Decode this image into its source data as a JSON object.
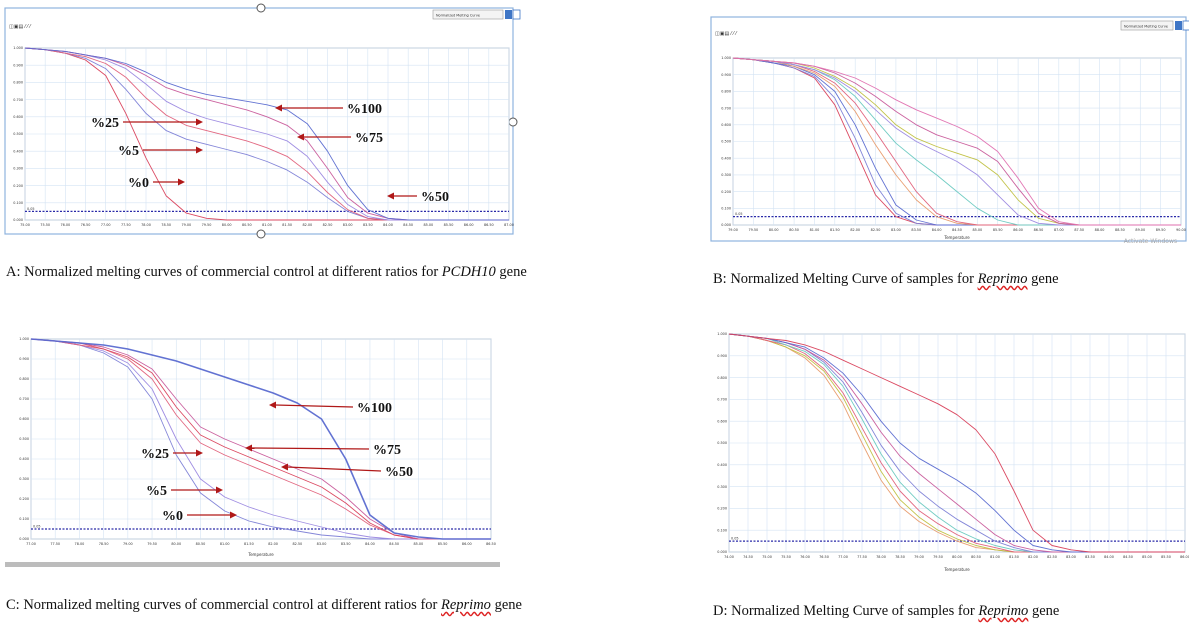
{
  "panels": [
    {
      "id": "A",
      "caption_prefix": "A: Normalized melting curves of commercial control at different ratios for ",
      "caption_gene": "PCDH10",
      "caption_suffix": " gene",
      "chart_data": {
        "type": "line",
        "x_ticks": [
          "75.00",
          "75.50",
          "76.00",
          "76.50",
          "77.00",
          "77.50",
          "78.00",
          "78.50",
          "79.00",
          "79.50",
          "80.00",
          "80.50",
          "81.00",
          "81.50",
          "82.00",
          "82.50",
          "83.00",
          "83.50",
          "84.00",
          "84.50",
          "85.00",
          "85.50",
          "86.00",
          "86.50",
          "87.00"
        ],
        "y_ticks": [
          "0.000",
          "0.100",
          "0.200",
          "0.300",
          "0.400",
          "0.500",
          "0.600",
          "0.700",
          "0.800",
          "0.900",
          "1.000"
        ],
        "threshold_label": "0.05",
        "dropdown_label": "Normalized Melting Curve",
        "annotations": [
          "%100",
          "%25",
          "%75",
          "%5",
          "%0",
          "%50"
        ],
        "series": [
          {
            "values": [
              1,
              0.99,
              0.97,
              0.93,
              0.84,
              0.62,
              0.36,
              0.14,
              0.04,
              0.01,
              0,
              0,
              0,
              0,
              0,
              0,
              0,
              0,
              0,
              0,
              0,
              0,
              0,
              0,
              0
            ]
          },
          {
            "values": [
              1,
              0.99,
              0.97,
              0.94,
              0.88,
              0.76,
              0.62,
              0.52,
              0.47,
              0.44,
              0.41,
              0.38,
              0.34,
              0.29,
              0.22,
              0.13,
              0.05,
              0.01,
              0,
              0,
              0,
              0,
              0,
              0,
              0
            ]
          },
          {
            "values": [
              1,
              0.99,
              0.97,
              0.95,
              0.91,
              0.83,
              0.71,
              0.61,
              0.55,
              0.52,
              0.49,
              0.46,
              0.42,
              0.37,
              0.28,
              0.16,
              0.06,
              0.01,
              0,
              0,
              0,
              0,
              0,
              0,
              0
            ]
          },
          {
            "values": [
              1,
              0.99,
              0.98,
              0.96,
              0.93,
              0.88,
              0.79,
              0.69,
              0.63,
              0.59,
              0.56,
              0.53,
              0.5,
              0.46,
              0.37,
              0.22,
              0.09,
              0.02,
              0,
              0,
              0,
              0,
              0,
              0,
              0
            ]
          },
          {
            "values": [
              1,
              0.99,
              0.98,
              0.96,
              0.94,
              0.9,
              0.84,
              0.77,
              0.73,
              0.7,
              0.67,
              0.64,
              0.6,
              0.55,
              0.46,
              0.3,
              0.13,
              0.04,
              0.01,
              0,
              0,
              0,
              0,
              0,
              0
            ]
          },
          {
            "values": [
              1,
              0.99,
              0.98,
              0.96,
              0.94,
              0.91,
              0.86,
              0.8,
              0.76,
              0.73,
              0.71,
              0.69,
              0.67,
              0.64,
              0.56,
              0.4,
              0.2,
              0.06,
              0.01,
              0,
              0,
              0,
              0,
              0,
              0
            ]
          }
        ]
      }
    },
    {
      "id": "B",
      "caption_prefix": "B:  Normalized Melting Curve of samples for ",
      "caption_gene": "Reprimo",
      "caption_suffix": " gene",
      "chart_data": {
        "type": "line",
        "x_ticks": [
          "79.00",
          "79.50",
          "80.00",
          "80.50",
          "81.00",
          "81.50",
          "82.00",
          "82.50",
          "83.00",
          "83.50",
          "84.00",
          "84.50",
          "85.00",
          "85.50",
          "86.00",
          "86.50",
          "87.00",
          "87.50",
          "88.00",
          "88.50",
          "89.00",
          "89.50",
          "90.00"
        ],
        "y_ticks": [
          "0.000",
          "0.100",
          "0.200",
          "0.300",
          "0.400",
          "0.500",
          "0.600",
          "0.700",
          "0.800",
          "0.900",
          "1.000"
        ],
        "xlabel": "Temperature",
        "threshold_label": "0.05",
        "dropdown_label": "Normalized Melting Curve",
        "watermark": "Activate Windows",
        "series": [
          {
            "values": [
              1,
              0.99,
              0.97,
              0.94,
              0.88,
              0.72,
              0.45,
              0.18,
              0.05,
              0.01,
              0,
              0,
              0,
              0,
              0,
              0,
              0,
              0,
              0,
              0,
              0,
              0,
              0
            ]
          },
          {
            "values": [
              1,
              0.99,
              0.97,
              0.94,
              0.89,
              0.76,
              0.52,
              0.24,
              0.07,
              0.01,
              0,
              0,
              0,
              0,
              0,
              0,
              0,
              0,
              0,
              0,
              0,
              0,
              0
            ]
          },
          {
            "values": [
              1,
              0.99,
              0.97,
              0.95,
              0.9,
              0.8,
              0.6,
              0.34,
              0.12,
              0.03,
              0,
              0,
              0,
              0,
              0,
              0,
              0,
              0,
              0,
              0,
              0,
              0,
              0
            ]
          },
          {
            "values": [
              1,
              0.99,
              0.98,
              0.95,
              0.91,
              0.83,
              0.68,
              0.48,
              0.3,
              0.15,
              0.05,
              0.01,
              0,
              0,
              0,
              0,
              0,
              0,
              0,
              0,
              0,
              0,
              0
            ]
          },
          {
            "values": [
              1,
              0.99,
              0.98,
              0.96,
              0.92,
              0.85,
              0.73,
              0.56,
              0.38,
              0.2,
              0.07,
              0.02,
              0,
              0,
              0,
              0,
              0,
              0,
              0,
              0,
              0,
              0,
              0
            ]
          },
          {
            "values": [
              1,
              0.99,
              0.98,
              0.96,
              0.93,
              0.87,
              0.77,
              0.63,
              0.49,
              0.39,
              0.3,
              0.2,
              0.1,
              0.03,
              0,
              0,
              0,
              0,
              0,
              0,
              0,
              0,
              0
            ]
          },
          {
            "values": [
              1,
              0.99,
              0.98,
              0.96,
              0.93,
              0.88,
              0.8,
              0.69,
              0.58,
              0.5,
              0.44,
              0.38,
              0.3,
              0.18,
              0.06,
              0.01,
              0,
              0,
              0,
              0,
              0,
              0,
              0
            ]
          },
          {
            "values": [
              1,
              0.99,
              0.98,
              0.97,
              0.94,
              0.89,
              0.82,
              0.72,
              0.6,
              0.52,
              0.47,
              0.43,
              0.39,
              0.3,
              0.15,
              0.04,
              0.01,
              0,
              0,
              0,
              0,
              0,
              0
            ]
          },
          {
            "values": [
              1,
              0.99,
              0.98,
              0.97,
              0.95,
              0.91,
              0.85,
              0.77,
              0.68,
              0.6,
              0.54,
              0.5,
              0.46,
              0.38,
              0.22,
              0.07,
              0.01,
              0,
              0,
              0,
              0,
              0,
              0
            ]
          },
          {
            "values": [
              1,
              0.99,
              0.98,
              0.97,
              0.95,
              0.92,
              0.88,
              0.82,
              0.75,
              0.69,
              0.64,
              0.59,
              0.53,
              0.44,
              0.28,
              0.1,
              0.02,
              0,
              0,
              0,
              0,
              0,
              0
            ]
          }
        ]
      }
    },
    {
      "id": "C",
      "caption_prefix": "C: Normalized melting curves of commercial control at different ratios for ",
      "caption_gene": "Reprimo",
      "caption_suffix": " gene",
      "chart_data": {
        "type": "line",
        "x_ticks": [
          "77.00",
          "77.50",
          "78.00",
          "78.50",
          "79.00",
          "79.50",
          "80.00",
          "80.50",
          "81.00",
          "81.50",
          "82.00",
          "82.50",
          "83.00",
          "83.50",
          "84.00",
          "84.50",
          "85.00",
          "85.50",
          "86.00",
          "86.50"
        ],
        "y_ticks": [
          "0.000",
          "0.100",
          "0.200",
          "0.300",
          "0.400",
          "0.500",
          "0.600",
          "0.700",
          "0.800",
          "0.900",
          "1.000"
        ],
        "xlabel": "Temperature",
        "threshold_label": "0.05",
        "annotations": [
          "%100",
          "%75",
          "%25",
          "%50",
          "%5",
          "%0"
        ],
        "series": [
          {
            "values": [
              1,
              0.99,
              0.97,
              0.93,
              0.86,
              0.7,
              0.42,
              0.23,
              0.14,
              0.09,
              0.06,
              0.04,
              0.02,
              0.01,
              0,
              0,
              0,
              0,
              0,
              0
            ]
          },
          {
            "values": [
              1,
              0.99,
              0.97,
              0.94,
              0.88,
              0.75,
              0.5,
              0.3,
              0.21,
              0.16,
              0.12,
              0.09,
              0.06,
              0.03,
              0.01,
              0,
              0,
              0,
              0,
              0
            ]
          },
          {
            "values": [
              1,
              0.99,
              0.97,
              0.95,
              0.9,
              0.8,
              0.62,
              0.48,
              0.42,
              0.37,
              0.32,
              0.27,
              0.22,
              0.15,
              0.07,
              0.02,
              0,
              0,
              0,
              0
            ]
          },
          {
            "values": [
              1,
              0.99,
              0.98,
              0.95,
              0.91,
              0.83,
              0.66,
              0.52,
              0.46,
              0.41,
              0.36,
              0.31,
              0.26,
              0.18,
              0.08,
              0.02,
              0,
              0,
              0,
              0
            ]
          },
          {
            "values": [
              1,
              0.99,
              0.98,
              0.96,
              0.92,
              0.85,
              0.7,
              0.56,
              0.5,
              0.45,
              0.4,
              0.35,
              0.3,
              0.21,
              0.1,
              0.03,
              0,
              0,
              0,
              0
            ]
          },
          {
            "values": [
              1,
              0.99,
              0.98,
              0.97,
              0.95,
              0.92,
              0.89,
              0.85,
              0.81,
              0.77,
              0.73,
              0.68,
              0.6,
              0.4,
              0.12,
              0.03,
              0.01,
              0,
              0,
              0
            ]
          }
        ]
      }
    },
    {
      "id": "D",
      "caption_prefix": "D:  Normalized Melting Curve of samples for ",
      "caption_gene": "Reprimo",
      "caption_suffix": " gene",
      "chart_data": {
        "type": "line",
        "x_ticks": [
          "74.00",
          "74.50",
          "75.00",
          "75.50",
          "76.00",
          "76.50",
          "77.00",
          "77.50",
          "78.00",
          "78.50",
          "79.00",
          "79.50",
          "80.00",
          "80.50",
          "81.00",
          "81.50",
          "82.00",
          "82.50",
          "83.00",
          "83.50",
          "84.00",
          "84.50",
          "85.00",
          "85.50",
          "86.00"
        ],
        "y_ticks": [
          "0.000",
          "0.100",
          "0.200",
          "0.300",
          "0.400",
          "0.500",
          "0.600",
          "0.700",
          "0.800",
          "0.900",
          "1.000"
        ],
        "xlabel": "Temperature",
        "threshold_label": "0.05",
        "series": [
          {
            "values": [
              1,
              0.99,
              0.97,
              0.94,
              0.89,
              0.81,
              0.68,
              0.5,
              0.33,
              0.21,
              0.14,
              0.09,
              0.05,
              0.02,
              0.01,
              0,
              0,
              0,
              0,
              0,
              0,
              0,
              0,
              0,
              0
            ]
          },
          {
            "values": [
              1,
              0.99,
              0.97,
              0.94,
              0.9,
              0.83,
              0.71,
              0.54,
              0.37,
              0.24,
              0.16,
              0.1,
              0.06,
              0.03,
              0.01,
              0,
              0,
              0,
              0,
              0,
              0,
              0,
              0,
              0,
              0
            ]
          },
          {
            "values": [
              1,
              0.99,
              0.97,
              0.95,
              0.91,
              0.84,
              0.73,
              0.57,
              0.41,
              0.28,
              0.19,
              0.13,
              0.08,
              0.04,
              0.02,
              0,
              0,
              0,
              0,
              0,
              0,
              0,
              0,
              0,
              0
            ]
          },
          {
            "values": [
              1,
              0.99,
              0.98,
              0.95,
              0.92,
              0.86,
              0.76,
              0.61,
              0.45,
              0.32,
              0.23,
              0.16,
              0.1,
              0.06,
              0.03,
              0.01,
              0,
              0,
              0,
              0,
              0,
              0,
              0,
              0,
              0
            ]
          },
          {
            "values": [
              1,
              0.99,
              0.98,
              0.96,
              0.93,
              0.87,
              0.78,
              0.64,
              0.49,
              0.37,
              0.28,
              0.21,
              0.15,
              0.1,
              0.05,
              0.02,
              0,
              0,
              0,
              0,
              0,
              0,
              0,
              0,
              0
            ]
          },
          {
            "values": [
              1,
              0.99,
              0.98,
              0.96,
              0.93,
              0.88,
              0.8,
              0.68,
              0.55,
              0.44,
              0.36,
              0.29,
              0.22,
              0.15,
              0.08,
              0.03,
              0.01,
              0,
              0,
              0,
              0,
              0,
              0,
              0,
              0
            ]
          },
          {
            "values": [
              1,
              0.99,
              0.98,
              0.96,
              0.94,
              0.89,
              0.82,
              0.72,
              0.6,
              0.5,
              0.43,
              0.38,
              0.33,
              0.27,
              0.19,
              0.1,
              0.03,
              0.01,
              0,
              0,
              0,
              0,
              0,
              0,
              0
            ]
          },
          {
            "values": [
              1,
              0.99,
              0.98,
              0.97,
              0.95,
              0.92,
              0.88,
              0.84,
              0.8,
              0.76,
              0.72,
              0.68,
              0.63,
              0.56,
              0.45,
              0.28,
              0.1,
              0.03,
              0.01,
              0,
              0,
              0,
              0,
              0,
              0
            ]
          }
        ]
      }
    }
  ],
  "palette": [
    "#d9405a",
    "#7d7fd6",
    "#e0607a",
    "#9b88e0",
    "#c85a9a",
    "#5a6ad0",
    "#e89a6a",
    "#6ac9c0",
    "#c0c040",
    "#e070b0"
  ]
}
